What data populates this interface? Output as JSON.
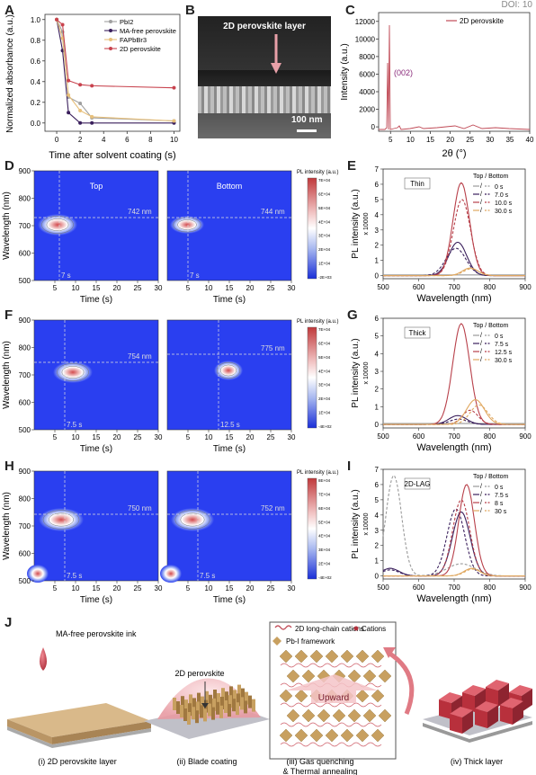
{
  "doi": "DOI: 10",
  "labels": {
    "A": "A",
    "B": "B",
    "C": "C",
    "D": "D",
    "E": "E",
    "F": "F",
    "G": "G",
    "H": "H",
    "I": "I",
    "J": "J"
  },
  "panelA": {
    "xlabel": "Time after solvent coating (s)",
    "ylabel": "Normalized absorbance (a.u.)",
    "xticks": [
      "0",
      "2",
      "4",
      "6",
      "8",
      "10"
    ],
    "yticks": [
      "0.0",
      "0.2",
      "0.4",
      "0.6",
      "0.8",
      "1.0"
    ],
    "legend": [
      "PbI2",
      "MA-free perovskite",
      "FAPbBr3",
      "2D perovskite"
    ],
    "colors": [
      "#a0a0a0",
      "#3a1f5c",
      "#e8c07a",
      "#c8434e"
    ],
    "series": [
      {
        "name": "PbI2",
        "x": [
          0,
          0.5,
          1,
          2,
          3,
          10
        ],
        "y": [
          1.0,
          0.88,
          0.25,
          0.19,
          0.05,
          0.02
        ]
      },
      {
        "name": "MA-free perovskite",
        "x": [
          0,
          0.5,
          1,
          2,
          3,
          10
        ],
        "y": [
          1.0,
          0.7,
          0.1,
          0.0,
          0.0,
          0.0
        ]
      },
      {
        "name": "FAPbBr3",
        "x": [
          0,
          0.5,
          1,
          2,
          3,
          10
        ],
        "y": [
          1.0,
          0.82,
          0.27,
          0.12,
          0.06,
          0.02
        ]
      },
      {
        "name": "2D perovskite",
        "x": [
          0,
          0.5,
          1,
          2,
          3,
          10
        ],
        "y": [
          1.0,
          0.95,
          0.41,
          0.37,
          0.36,
          0.34
        ]
      }
    ]
  },
  "panelB": {
    "annot": "2D perovskite layer",
    "scale": "100 nm"
  },
  "panelC": {
    "xlabel": "2θ (°)",
    "ylabel": "Intensity (a.u.)",
    "legend": "2D perovskite",
    "peak": "(002)",
    "xticks": [
      "5",
      "10",
      "15",
      "20",
      "25",
      "30",
      "35",
      "40"
    ],
    "yticks": [
      "0",
      "2000",
      "4000",
      "6000",
      "8000",
      "10000",
      "12000"
    ]
  },
  "heat": {
    "ylabel": "Wavelength (nm)",
    "xlabel": "Time (s)",
    "yticks": [
      "500",
      "600",
      "700",
      "800",
      "900"
    ],
    "xticks": [
      "5",
      "10",
      "15",
      "20",
      "25",
      "30"
    ],
    "cbar_title": "PL intensity (a.u.)",
    "D": {
      "top": "Top",
      "bottom": "Bottom",
      "wl1": "742 nm",
      "wl2": "744 nm",
      "t1": "7 s",
      "t2": "7 s",
      "cbar": [
        "7E+04",
        "6E+04",
        "5E+04",
        "4E+04",
        "3E+04",
        "2E+04",
        "1E+04",
        "-2E+03"
      ]
    },
    "F": {
      "wl1": "754 nm",
      "wl2": "775 nm",
      "t1": "7.5 s",
      "t2": "12.5 s",
      "cbar": [
        "7E+04",
        "6E+04",
        "5E+04",
        "4E+04",
        "3E+04",
        "2E+04",
        "1E+04",
        "-4E+02"
      ]
    },
    "H": {
      "wl1": "750 nm",
      "wl2": "752 nm",
      "t1": "7.5 s",
      "t2": "7.5 s",
      "cbar": [
        "8E+04",
        "7E+04",
        "6E+04",
        "5E+04",
        "4E+04",
        "3E+04",
        "2E+04",
        "-4E+02"
      ]
    }
  },
  "pl": {
    "xlabel": "Wavelength (nm)",
    "ylabel": "PL intensity (a.u.)",
    "unit": "x 10000",
    "xticks": [
      "500",
      "600",
      "700",
      "800",
      "900"
    ],
    "legend_title": "Top / Bottom",
    "E": {
      "tag": "Thin",
      "yticks": [
        "0",
        "1",
        "2",
        "3",
        "4",
        "5",
        "6",
        "7"
      ],
      "times": [
        "0 s",
        "7.0 s",
        "10.0 s",
        "30.0 s"
      ]
    },
    "G": {
      "tag": "Thick",
      "yticks": [
        "0",
        "1",
        "2",
        "3",
        "4",
        "5",
        "6"
      ],
      "times": [
        "0 s",
        "7.5 s",
        "12.5 s",
        "30.0 s"
      ]
    },
    "I": {
      "tag": "2D-LAG",
      "yticks": [
        "0",
        "1",
        "2",
        "3",
        "4",
        "5",
        "6",
        "7"
      ],
      "times": [
        "0 s",
        "7.5 s",
        "8 s",
        "30 s"
      ]
    },
    "colors": [
      "#9a9a9a",
      "#3a1f5c",
      "#b8404a",
      "#e0a860"
    ]
  },
  "panelJ": {
    "ink": "MA-free perovskite ink",
    "dome": "2D perovskite",
    "legend1": "2D long-chain cations",
    "legend2": "Cations",
    "legend3": "Pb-I framework",
    "arrow": "Upward",
    "cap1": "(i) 2D perovskite layer",
    "cap2": "(ii) Blade coating",
    "cap3a": "(iii) Gas quenching",
    "cap3b": "& Thermal annealing",
    "cap4": "(iv) Thick layer"
  }
}
